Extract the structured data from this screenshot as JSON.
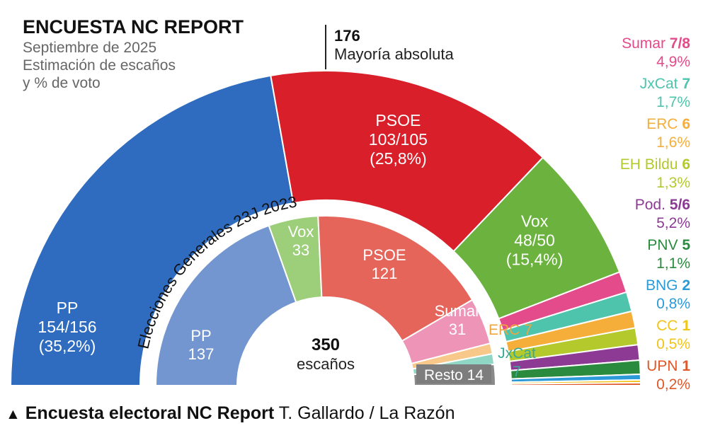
{
  "chart_data": [
    {
      "type": "pie",
      "layout": "parliament-semicircle",
      "title": "ENCUESTA NC REPORT",
      "subtitle": [
        "Septiembre de 2025",
        "Estimación de escaños",
        "y % de voto"
      ],
      "majority": {
        "value": "176",
        "label": "Mayoría absoluta"
      },
      "parties": [
        {
          "name": "PP",
          "seats": 155,
          "seats_label": "154/156",
          "vote": "(35,2%)",
          "color": "#2f6cbf"
        },
        {
          "name": "PSOE",
          "seats": 104,
          "seats_label": "103/105",
          "vote": "(25,8%)",
          "color": "#d81f2a"
        },
        {
          "name": "Vox",
          "seats": 49,
          "seats_label": "48/50",
          "vote": "(15,4%)",
          "color": "#6bb33e"
        },
        {
          "name": "Sumar",
          "seats": 7.5,
          "seats_label": "7/8",
          "vote": "4,9%",
          "color": "#e34b8a"
        },
        {
          "name": "JxCat",
          "seats": 7,
          "seats_label": "7",
          "vote": "1,7%",
          "color": "#4ec4ad"
        },
        {
          "name": "ERC",
          "seats": 6,
          "seats_label": "6",
          "vote": "1,6%",
          "color": "#f5ae3a"
        },
        {
          "name": "EH Bildu",
          "seats": 6,
          "seats_label": "6",
          "vote": "1,3%",
          "color": "#b4c92c"
        },
        {
          "name": "Pod.",
          "seats": 5.5,
          "seats_label": "5/6",
          "vote": "5,2%",
          "color": "#8c3a93"
        },
        {
          "name": "PNV",
          "seats": 5,
          "seats_label": "5",
          "vote": "1,1%",
          "color": "#2a8a3e"
        },
        {
          "name": "BNG",
          "seats": 2,
          "seats_label": "2",
          "vote": "0,8%",
          "color": "#2a9ad8"
        },
        {
          "name": "CC",
          "seats": 1,
          "seats_label": "1",
          "vote": "0,5%",
          "color": "#f0c419"
        },
        {
          "name": "UPN",
          "seats": 1,
          "seats_label": "1",
          "vote": "0,2%",
          "color": "#e0572a"
        }
      ]
    },
    {
      "type": "pie",
      "layout": "parliament-semicircle",
      "title": "Elecciones Generales 23J 2023",
      "total": {
        "value": "350",
        "label": "escaños"
      },
      "parties": [
        {
          "name": "PP",
          "seats": 137,
          "color": "#7496d0"
        },
        {
          "name": "Vox",
          "seats": 33,
          "color": "#9dce7a"
        },
        {
          "name": "PSOE",
          "seats": 121,
          "color": "#e5655b"
        },
        {
          "name": "Sumar",
          "seats": 31,
          "color": "#ee94b7"
        },
        {
          "name": "ERC",
          "seats": 7,
          "color": "#f8c88a"
        },
        {
          "name": "JxCat",
          "seats": 7,
          "color": "#8fd6c5"
        },
        {
          "name": "Resto",
          "seats": 14,
          "color": "#8a8a8a"
        }
      ]
    }
  ],
  "caption": {
    "bold": "Encuesta electoral NC Report",
    "credit": "T. Gallardo  /  La Razón"
  }
}
